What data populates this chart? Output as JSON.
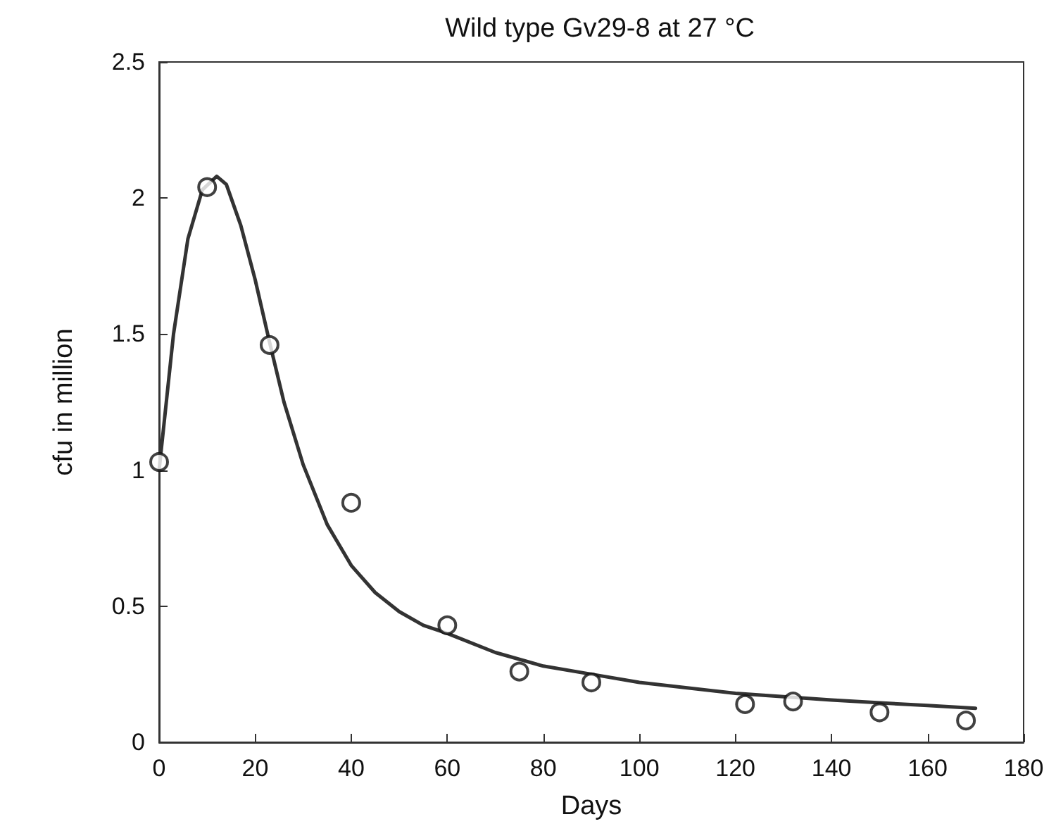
{
  "chart_data": {
    "type": "scatter",
    "title": "Wild type Gv29-8 at 27 °C",
    "xlabel": "Days",
    "ylabel": "cfu in million",
    "xlim": [
      0,
      180
    ],
    "xticks": [
      0,
      20,
      40,
      60,
      80,
      100,
      120,
      140,
      160,
      180
    ],
    "ylim": [
      0,
      2.5
    ],
    "yticks": [
      0,
      0.5,
      1,
      1.5,
      2,
      2.5
    ],
    "grid": false,
    "series": [
      {
        "marker": "circle",
        "color": "#111111",
        "x": [
          0,
          10,
          23,
          40,
          60,
          75,
          90,
          122,
          132,
          150,
          168
        ],
        "values": [
          1.03,
          2.04,
          1.46,
          0.88,
          0.43,
          0.26,
          0.22,
          0.14,
          0.15,
          0.11,
          0.08
        ]
      },
      {
        "type": "line",
        "marker": "none",
        "line_style": "solid",
        "color": "#333333",
        "x": [
          0,
          3,
          6,
          9,
          12,
          14,
          17,
          20,
          23,
          26,
          30,
          35,
          40,
          45,
          50,
          55,
          60,
          70,
          80,
          90,
          100,
          120,
          140,
          160,
          170
        ],
        "values": [
          1.0,
          1.5,
          1.85,
          2.03,
          2.08,
          2.05,
          1.9,
          1.7,
          1.47,
          1.25,
          1.02,
          0.8,
          0.65,
          0.55,
          0.48,
          0.43,
          0.4,
          0.33,
          0.28,
          0.25,
          0.22,
          0.18,
          0.155,
          0.135,
          0.125
        ]
      }
    ]
  }
}
